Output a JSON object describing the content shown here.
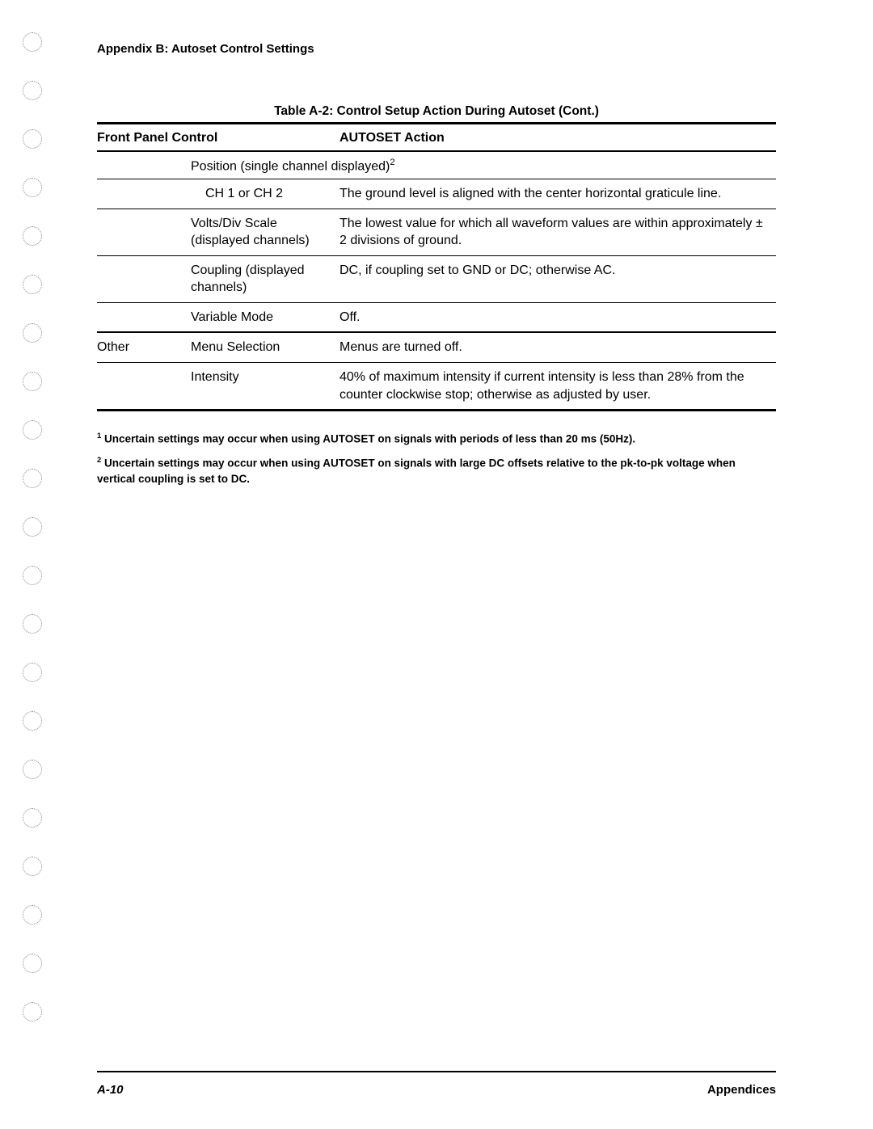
{
  "header": {
    "appendix": "Appendix B: Autoset Control Settings"
  },
  "table": {
    "caption": "Table A-2:  Control Setup Action During Autoset (Cont.)",
    "head": {
      "col1": "Front Panel Control",
      "col2": "AUTOSET Action"
    },
    "position_subhead_prefix": "Position (single channel displayed)",
    "position_subhead_sup": "2",
    "rows": [
      {
        "group": "",
        "control": "CH 1 or CH 2",
        "action": "The ground level is aligned with the center horizontal graticule line."
      },
      {
        "group": "",
        "control": "Volts/Div Scale (displayed channels)",
        "action": "The lowest value for which all waveform values are within approximately ± 2 divisions of ground."
      },
      {
        "group": "",
        "control": "Coupling (displayed channels)",
        "action": "DC, if coupling set to GND or DC; otherwise AC."
      },
      {
        "group": "",
        "control": "Variable Mode",
        "action": "Off."
      },
      {
        "group": "Other",
        "control": "Menu Selection",
        "action": "Menus are turned off."
      },
      {
        "group": "",
        "control": "Intensity",
        "action": "40% of maximum intensity if current intensity is less than 28% from the counter clockwise stop; otherwise as adjusted by user."
      }
    ]
  },
  "footnotes": {
    "n1_sup": "1",
    "n1": " Uncertain settings may occur when using AUTOSET on signals with periods of less than 20 ms (50Hz).",
    "n2_sup": "2",
    "n2": " Uncertain settings may occur when using AUTOSET on signals with large DC offsets relative to the pk-to-pk voltage when vertical coupling is set to DC."
  },
  "footer": {
    "page": "A-10",
    "section": "Appendices"
  },
  "holes_count": 21
}
